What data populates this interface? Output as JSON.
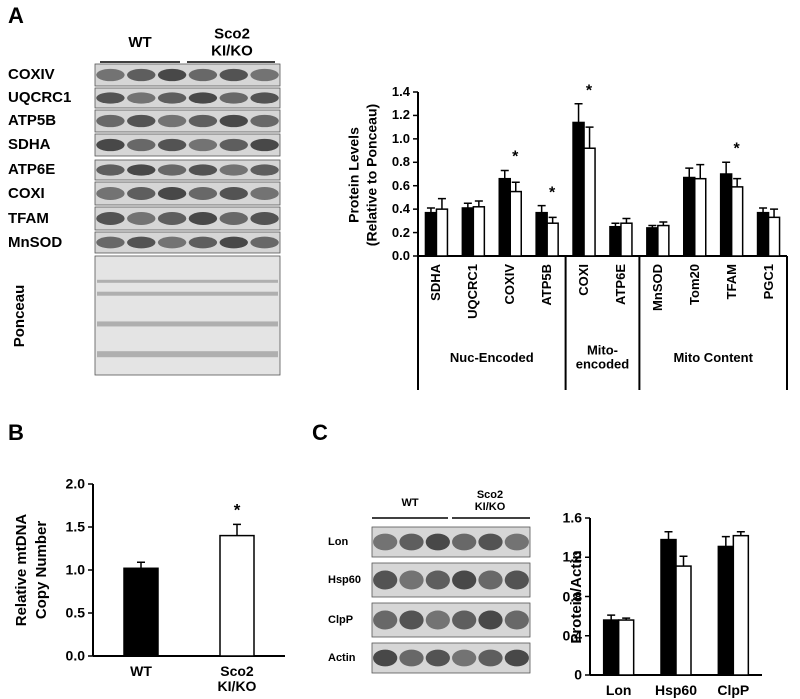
{
  "panels": {
    "a": {
      "letter": "A",
      "blot": {
        "headers": [
          "WT",
          "Sco2\nKI/KO"
        ],
        "rows": [
          "COXIV",
          "UQCRC1",
          "ATP5B",
          "SDHA",
          "ATP6E",
          "COXI",
          "TFAM",
          "MnSOD",
          "Ponceau"
        ]
      }
    },
    "b": {
      "letter": "B"
    },
    "c": {
      "letter": "C",
      "blot": {
        "headers": [
          "WT",
          "Sco2\nKI/KO"
        ],
        "rows": [
          "Lon",
          "Hsp60",
          "ClpP",
          "Actin"
        ]
      }
    }
  },
  "chart_data": [
    {
      "type": "bar",
      "ylabel": [
        "Protein Levels",
        "(Relative to Ponceau)"
      ],
      "categories": [
        "SDHA",
        "UQCRC1",
        "COXIV",
        "ATP5B",
        "COXI",
        "ATP6E",
        "MnSOD",
        "Tom20",
        "TFAM",
        "PGC1"
      ],
      "groups": [
        {
          "label": "Nuc-Encoded",
          "categories": [
            "SDHA",
            "UQCRC1",
            "COXIV",
            "ATP5B"
          ]
        },
        {
          "label": "Mito-\nencoded",
          "categories": [
            "COXI",
            "ATP6E"
          ]
        },
        {
          "label": "Mito Content",
          "categories": [
            "MnSOD",
            "Tom20",
            "TFAM",
            "PGC1"
          ]
        }
      ],
      "series": [
        {
          "color": "#000000",
          "values": [
            0.37,
            0.41,
            0.66,
            0.37,
            1.14,
            0.25,
            0.24,
            0.67,
            0.7,
            0.37
          ],
          "errors": [
            0.04,
            0.04,
            0.07,
            0.06,
            0.16,
            0.03,
            0.02,
            0.08,
            0.1,
            0.04
          ]
        },
        {
          "color": "#ffffff",
          "values": [
            0.4,
            0.42,
            0.55,
            0.28,
            0.92,
            0.28,
            0.26,
            0.66,
            0.59,
            0.33
          ],
          "errors": [
            0.09,
            0.05,
            0.08,
            0.05,
            0.18,
            0.04,
            0.03,
            0.12,
            0.07,
            0.07
          ]
        }
      ],
      "markers": [
        null,
        null,
        "*",
        "*",
        "*",
        null,
        null,
        null,
        "*",
        null
      ],
      "ylim": [
        0,
        1.4
      ],
      "yticks": [
        {
          "value": 0,
          "label": "0.0"
        },
        0.2,
        0.4,
        0.6,
        0.8,
        {
          "value": 1,
          "label": "1.0"
        },
        1.2,
        1.4
      ]
    },
    {
      "type": "bar",
      "ylabel": [
        "Relative mtDNA",
        "Copy Number"
      ],
      "categories": [
        "WT",
        "Sco2\nKI/KO"
      ],
      "values": [
        1.02,
        1.4
      ],
      "errors": [
        0.07,
        0.13
      ],
      "colors": [
        "#000000",
        "#ffffff"
      ],
      "markers": [
        null,
        "*"
      ],
      "ylim": [
        0,
        2
      ],
      "yticks": [
        {
          "value": 0,
          "label": "0.0"
        },
        0.5,
        {
          "value": 1,
          "label": "1.0"
        },
        1.5,
        {
          "value": 2,
          "label": "2.0"
        }
      ]
    },
    {
      "type": "bar",
      "ylabel": "Protein/Actin",
      "categories": [
        "Lon",
        "Hsp60",
        "ClpP"
      ],
      "series": [
        {
          "color": "#000000",
          "values": [
            0.56,
            1.38,
            1.31
          ],
          "errors": [
            0.05,
            0.08,
            0.1
          ]
        },
        {
          "color": "#ffffff",
          "values": [
            0.56,
            1.11,
            1.42
          ],
          "errors": [
            0.02,
            0.1,
            0.04
          ]
        }
      ],
      "ylim": [
        0,
        1.6
      ],
      "yticks": [
        0,
        0.4,
        0.8,
        1.2,
        1.6
      ]
    }
  ]
}
